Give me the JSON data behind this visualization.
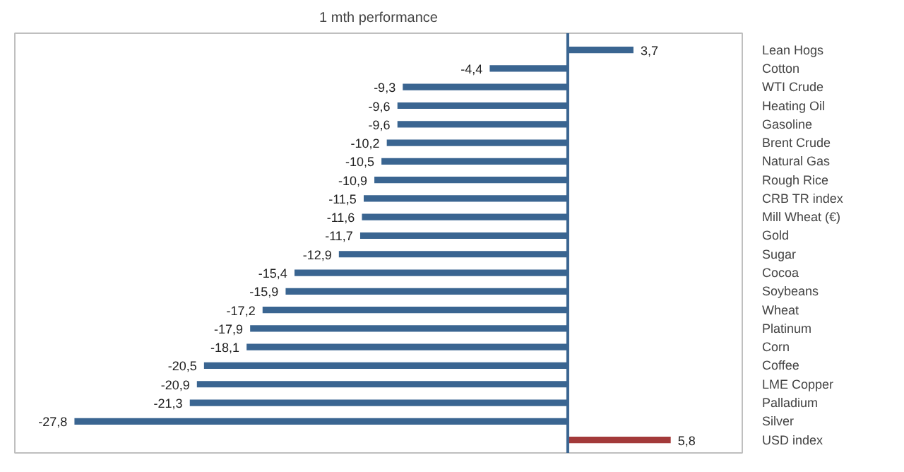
{
  "chart_data": {
    "type": "bar",
    "orientation": "horizontal",
    "title": "1 mth performance",
    "categories": [
      "Lean Hogs",
      "Cotton",
      "WTI Crude",
      "Heating Oil",
      "Gasoline",
      "Brent Crude",
      "Natural Gas",
      "Rough Rice",
      "CRB TR index",
      "Mill Wheat (€)",
      "Gold",
      "Sugar",
      "Cocoa",
      "Soybeans",
      "Wheat",
      "Platinum",
      "Corn",
      "Coffee",
      "LME Copper",
      "Palladium",
      "Silver",
      "USD index"
    ],
    "values": [
      3.7,
      -4.4,
      -9.3,
      -9.6,
      -9.6,
      -10.2,
      -10.5,
      -10.9,
      -11.5,
      -11.6,
      -11.7,
      -12.9,
      -15.4,
      -15.9,
      -17.2,
      -17.9,
      -18.1,
      -20.5,
      -20.9,
      -21.3,
      -27.8,
      5.8
    ],
    "value_labels": [
      "3,7",
      "-4,4",
      "-9,3",
      "-9,6",
      "-9,6",
      "-10,2",
      "-10,5",
      "-10,9",
      "-11,5",
      "-11,6",
      "-11,7",
      "-12,9",
      "-15,4",
      "-15,9",
      "-17,2",
      "-17,9",
      "-18,1",
      "-20,5",
      "-20,9",
      "-21,3",
      "-27,8",
      "5,8"
    ],
    "colors": [
      "#3a6591",
      "#3a6591",
      "#3a6591",
      "#3a6591",
      "#3a6591",
      "#3a6591",
      "#3a6591",
      "#3a6591",
      "#3a6591",
      "#3a6591",
      "#3a6591",
      "#3a6591",
      "#3a6591",
      "#3a6591",
      "#3a6591",
      "#3a6591",
      "#3a6591",
      "#3a6591",
      "#3a6591",
      "#3a6591",
      "#3a6591",
      "#a33a3a"
    ],
    "ref_lines": [
      {
        "axis": "x",
        "value": 0,
        "color": "#3a6591"
      }
    ],
    "grid": false
  }
}
